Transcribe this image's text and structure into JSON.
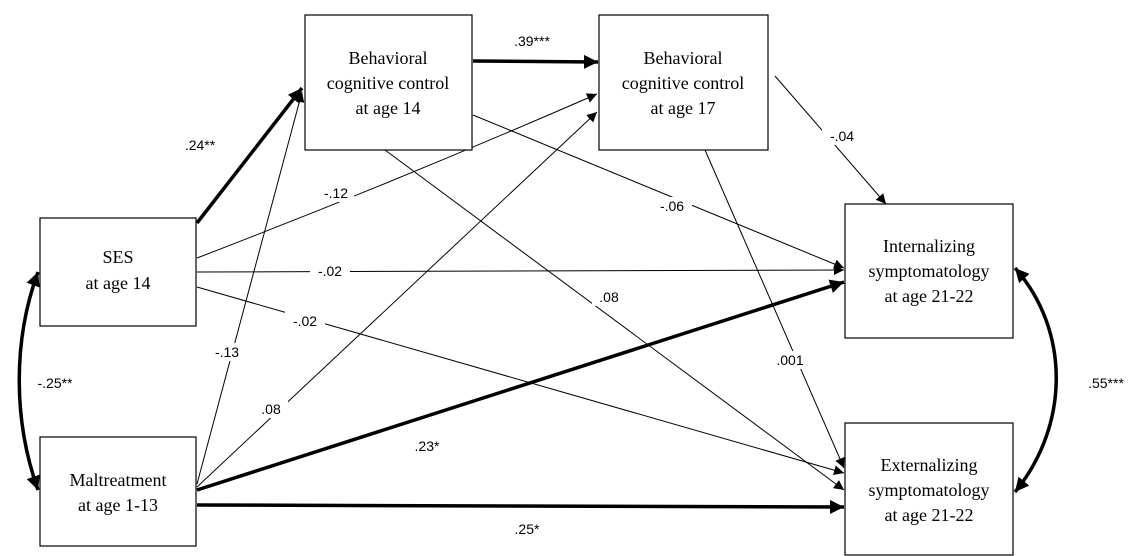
{
  "nodes": {
    "ses": {
      "line1": "SES",
      "line2": "at age 14"
    },
    "maltreatment": {
      "line1": "Maltreatment",
      "line2": "at age 1-13"
    },
    "bcc14": {
      "line1": "Behavioral",
      "line2": "cognitive control",
      "line3": "at age 14"
    },
    "bcc17": {
      "line1": "Behavioral",
      "line2": "cognitive control",
      "line3": "at age 17"
    },
    "internalizing": {
      "line1": "Internalizing",
      "line2": "symptomatology",
      "line3": "at age 21-22"
    },
    "externalizing": {
      "line1": "Externalizing",
      "line2": "symptomatology",
      "line3": "at age 21-22"
    }
  },
  "paths": {
    "ses_bcc14": ".24**",
    "ses_bcc17": "-.12",
    "ses_int": "-.02",
    "ses_ext": "-.02",
    "mal_bcc14": "-.13",
    "mal_bcc17": ".08",
    "mal_int": ".23*",
    "mal_ext": ".25*",
    "bcc14_bcc17": ".39***",
    "bcc14_int": "-.06",
    "bcc14_ext": ".08",
    "bcc17_int": "-.04",
    "bcc17_ext": ".001",
    "ses_mal_cov": "-.25**",
    "int_ext_cov": ".55***"
  }
}
